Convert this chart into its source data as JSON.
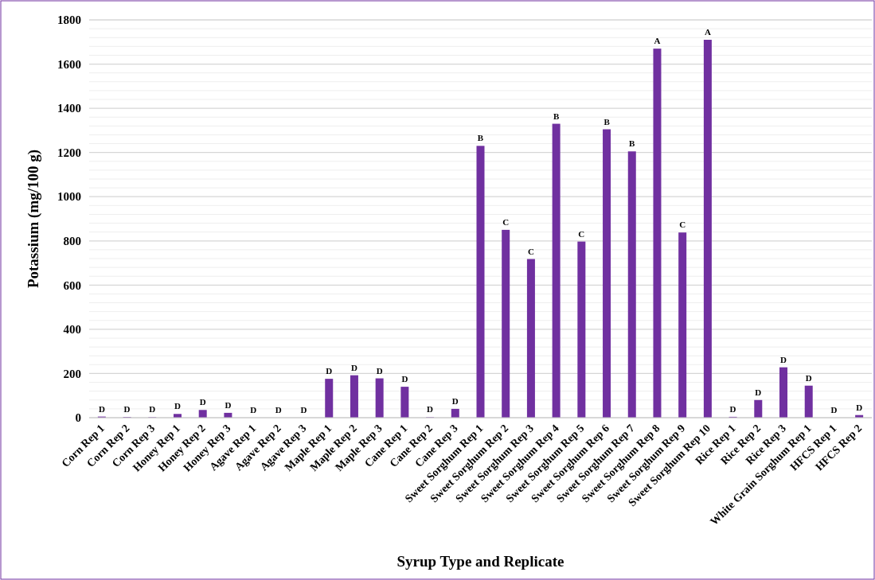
{
  "chart_data": {
    "type": "bar",
    "xlabel": "Syrup Type and Replicate",
    "ylabel": "Potassium (mg/100 g)",
    "categories": [
      "Corn Rep 1",
      "Corn Rep 2",
      "Corn Rep 3",
      "Honey Rep 1",
      "Honey Rep 2",
      "Honey Rep 3",
      "Agave Rep 1",
      "Agave Rep 2",
      "Agave Rep 3",
      "Maple Rep 1",
      "Maple Rep 2",
      "Maple Rep 3",
      "Cane Rep 1",
      "Cane Rep 2",
      "Cane Rep 3",
      "Sweet Sorghum Rep 1",
      "Sweet Sorghum Rep 2",
      "Sweet Sorghum Rep 3",
      "Sweet Sorghum Rep 4",
      "Sweet Sorghum Rep 5",
      "Sweet Sorghum Rep 6",
      "Sweet Sorghum Rep 7",
      "Sweet Sorghum Rep 8",
      "Sweet Sorghum Rep 9",
      "Sweet Sorghum Rep 10",
      "Rice Rep 1",
      "Rice Rep 2",
      "Rice Rep 3",
      "White Grain Sorghum Rep 1",
      "HFCS Rep 1",
      "HFCS Rep 2"
    ],
    "values": [
      5,
      3,
      2,
      17,
      35,
      22,
      0,
      0,
      0,
      176,
      192,
      178,
      140,
      2,
      40,
      1230,
      850,
      718,
      1330,
      797,
      1305,
      1205,
      1670,
      838,
      1710,
      4,
      80,
      228,
      145,
      0,
      12
    ],
    "value_labels": [
      "D",
      "D",
      "D",
      "D",
      "D",
      "D",
      "D",
      "D",
      "D",
      "D",
      "D",
      "D",
      "D",
      "D",
      "D",
      "B",
      "C",
      "C",
      "B",
      "C",
      "B",
      "B",
      "A",
      "C",
      "A",
      "D",
      "D",
      "D",
      "D",
      "D",
      "D"
    ],
    "color": "#7030a0",
    "ylim": [
      0,
      1800
    ],
    "yticks": [
      0,
      {
        "value": 40,
        "label": null
      },
      {
        "value": 80,
        "label": null
      },
      {
        "value": 120,
        "label": null
      },
      {
        "value": 160,
        "label": null
      },
      200,
      {
        "value": 240,
        "label": null
      },
      {
        "value": 280,
        "label": null
      },
      {
        "value": 320,
        "label": null
      },
      {
        "value": 360,
        "label": null
      },
      400,
      {
        "value": 440,
        "label": null
      },
      {
        "value": 480,
        "label": null
      },
      {
        "value": 520,
        "label": null
      },
      {
        "value": 560,
        "label": null
      },
      600,
      {
        "value": 640,
        "label": null
      },
      {
        "value": 680,
        "label": null
      },
      {
        "value": 720,
        "label": null
      },
      {
        "value": 760,
        "label": null
      },
      800,
      {
        "value": 840,
        "label": null
      },
      {
        "value": 880,
        "label": null
      },
      {
        "value": 920,
        "label": null
      },
      {
        "value": 960,
        "label": null
      },
      1000,
      {
        "value": 1040,
        "label": null
      },
      {
        "value": 1080,
        "label": null
      },
      {
        "value": 1120,
        "label": null
      },
      {
        "value": 1160,
        "label": null
      },
      1200,
      {
        "value": 1240,
        "label": null
      },
      {
        "value": 1280,
        "label": null
      },
      {
        "value": 1320,
        "label": null
      },
      {
        "value": 1360,
        "label": null
      },
      1400,
      {
        "value": 1440,
        "label": null
      },
      {
        "value": 1480,
        "label": null
      },
      {
        "value": 1520,
        "label": null
      },
      {
        "value": 1560,
        "label": null
      },
      1600,
      {
        "value": 1640,
        "label": null
      },
      {
        "value": 1680,
        "label": null
      },
      {
        "value": 1720,
        "label": null
      },
      {
        "value": 1760,
        "label": null
      },
      1800
    ],
    "grid": true
  }
}
